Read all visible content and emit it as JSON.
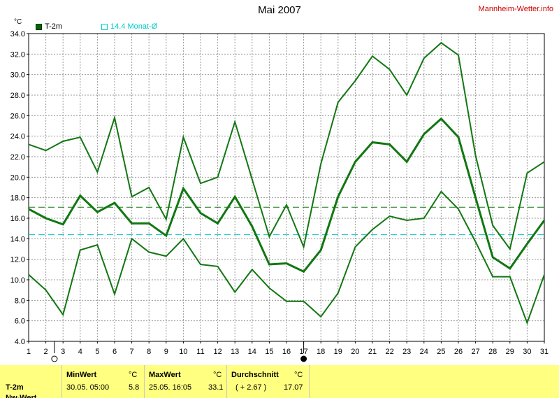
{
  "header": {
    "title": "Mai 2007",
    "site": "Mannheim-Wetter.info",
    "unit": "°C"
  },
  "legend": {
    "t2m": "T-2m",
    "avg": "14.4 Monat-Ø"
  },
  "colors": {
    "series": "#117711",
    "grid": "#999999",
    "monthly_avg_line": "#00cccc",
    "overall_avg_line": "#117711",
    "footer_bg": "#ffff80"
  },
  "chart_data": {
    "type": "line",
    "title": "Mai 2007",
    "ylabel": "°C",
    "x": [
      1,
      2,
      3,
      4,
      5,
      6,
      7,
      8,
      9,
      10,
      11,
      12,
      13,
      14,
      15,
      16,
      17,
      18,
      19,
      20,
      21,
      22,
      23,
      24,
      25,
      26,
      27,
      28,
      29,
      30,
      31
    ],
    "xticks": [
      "1",
      "2",
      "3",
      "4",
      "5",
      "6",
      "7",
      "8",
      "9",
      "10",
      "11",
      "12",
      "13",
      "14",
      "15",
      "16",
      "17",
      "18",
      "19",
      "20",
      "21",
      "22",
      "23",
      "24",
      "25",
      "26",
      "27",
      "28",
      "29",
      "30",
      "31"
    ],
    "yticks": [
      "4.0",
      "6.0",
      "8.0",
      "10.0",
      "12.0",
      "14.0",
      "16.0",
      "18.0",
      "20.0",
      "22.0",
      "24.0",
      "26.0",
      "28.0",
      "30.0",
      "32.0",
      "34.0"
    ],
    "xlim": [
      1,
      31
    ],
    "ylim": [
      4,
      34
    ],
    "grid": true,
    "legend_position": "top-left",
    "series": [
      {
        "name": "T-2m",
        "role": "max",
        "values": [
          23.2,
          22.6,
          23.5,
          23.9,
          20.5,
          25.8,
          18.1,
          19.0,
          15.9,
          23.9,
          19.4,
          20.0,
          25.4,
          19.8,
          14.2,
          17.3,
          13.2,
          21.3,
          27.3,
          29.4,
          31.8,
          30.5,
          28.0,
          31.6,
          33.1,
          31.9,
          22.1,
          15.3,
          13.0,
          20.4,
          21.5
        ]
      },
      {
        "name": "T-2m",
        "role": "mean",
        "values": [
          16.9,
          16.0,
          15.4,
          18.2,
          16.6,
          17.5,
          15.5,
          15.5,
          14.3,
          18.9,
          16.5,
          15.5,
          18.1,
          15.2,
          11.5,
          11.6,
          10.8,
          12.9,
          18.1,
          21.5,
          23.4,
          23.2,
          21.5,
          24.2,
          25.7,
          23.9,
          18.0,
          12.2,
          11.1,
          13.5,
          15.8
        ]
      },
      {
        "name": "T-2m",
        "role": "min",
        "values": [
          10.5,
          9.0,
          6.6,
          12.9,
          13.4,
          8.6,
          14.0,
          12.7,
          12.3,
          14.0,
          11.5,
          11.3,
          8.8,
          11.0,
          9.2,
          7.9,
          7.9,
          6.4,
          8.7,
          13.2,
          14.9,
          16.2,
          15.8,
          16.0,
          18.6,
          16.9,
          13.7,
          10.3,
          10.3,
          5.8,
          10.5
        ]
      }
    ],
    "reference_lines": [
      {
        "value": 14.4,
        "label": "14.4 Monat-Ø"
      },
      {
        "value": 17.07
      }
    ],
    "markers": [
      {
        "day": 2.5,
        "symbol": "full-moon"
      },
      {
        "day": 17,
        "symbol": "new-moon"
      }
    ]
  },
  "footer": {
    "min_header": "MinWert",
    "max_header": "MaxWert",
    "avg_header": "Durchschnitt",
    "unit": "°C",
    "row_label": "T-2m",
    "next_row_label": "Nw-Wert",
    "min_time": "30.05.  05:00",
    "min_value": "5.8",
    "max_time": "25.05.  16:05",
    "max_value": "33.1",
    "avg_deviation": "( + 2.67 )",
    "avg_value": "17.07"
  }
}
